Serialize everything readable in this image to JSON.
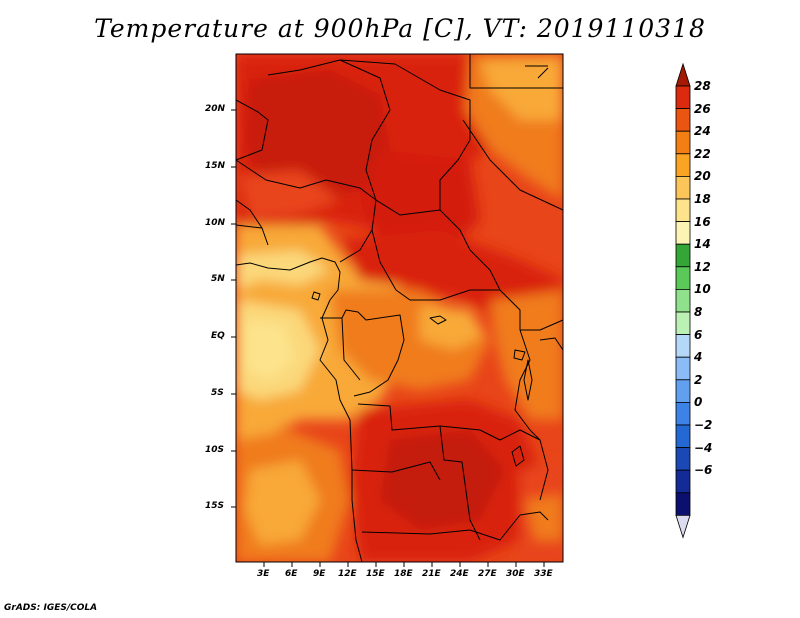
{
  "title": "Temperature at 900hPa [C], VT: 2019110318",
  "credit": "GrADS: IGES/COLA",
  "map": {
    "lat_labels": [
      "20N",
      "15N",
      "10N",
      "5N",
      "EQ",
      "5S",
      "10S",
      "15S"
    ],
    "lon_labels": [
      "3E",
      "6E",
      "9E",
      "12E",
      "15E",
      "18E",
      "21E",
      "24E",
      "27E",
      "30E",
      "33E"
    ]
  },
  "colorbar": {
    "levels": [
      "28",
      "26",
      "24",
      "22",
      "20",
      "18",
      "16",
      "14",
      "12",
      "10",
      "8",
      "6",
      "4",
      "2",
      "0",
      "−2",
      "−4",
      "−6"
    ],
    "colors": [
      "#a51a04",
      "#dc2a0e",
      "#ea5512",
      "#f27e14",
      "#fba323",
      "#fbc55a",
      "#fde38c",
      "#fcf4b4",
      "#34a638",
      "#5bc95a",
      "#8fe18b",
      "#bbf1b4",
      "#b5d7f8",
      "#8bbcf6",
      "#62a0ef",
      "#3d82e6",
      "#2468d4",
      "#1a49b5",
      "#142b97",
      "#0b0f6e",
      "#dcdcf0"
    ]
  },
  "colors": {
    "darkest_red": "#b01905",
    "dark_red": "#d9200e",
    "red_orange": "#e8451a",
    "orange": "#f07c1c",
    "light_orange": "#f8a937",
    "pale_yellow": "#fbd87a"
  }
}
